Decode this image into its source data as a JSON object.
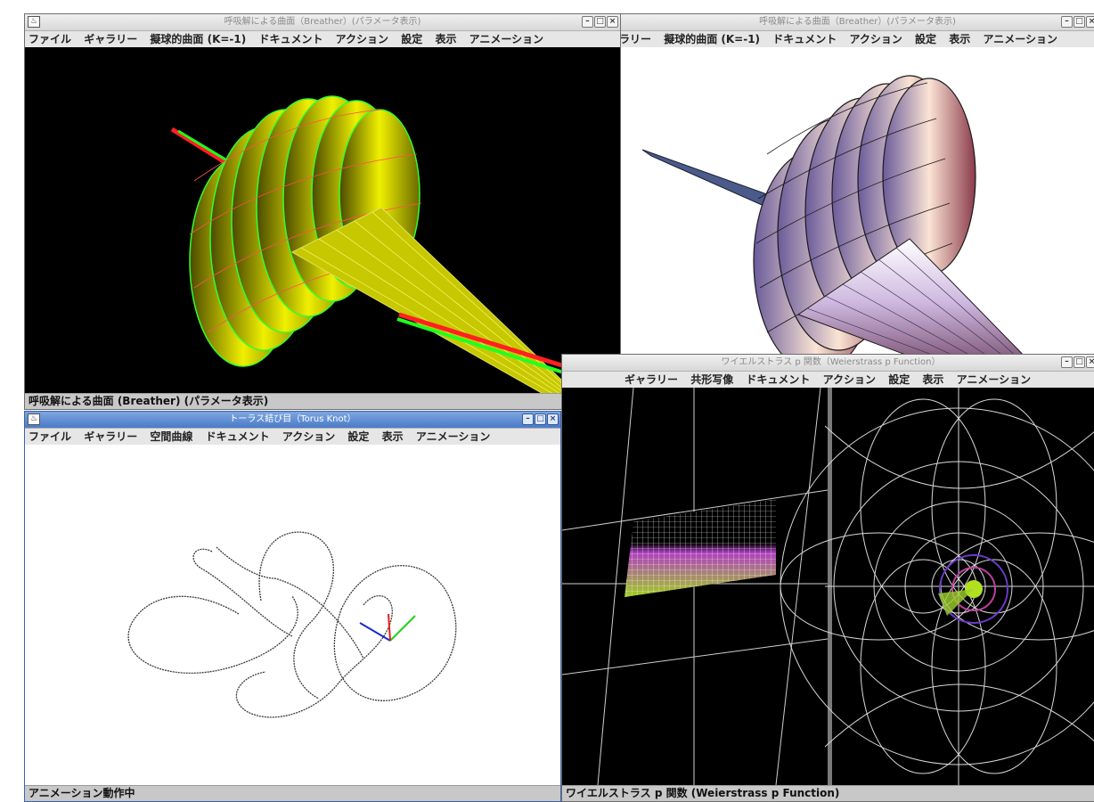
{
  "breather_right": {
    "title": "呼吸解による曲面（Breather）(パラメータ表示)",
    "menu": [
      "ラリー",
      "擬球的曲面 (K=-1)",
      "ドキュメント",
      "アクション",
      "設定",
      "表示",
      "アニメーション"
    ]
  },
  "breather_left": {
    "title": "呼吸解による曲面（Breather）(パラメータ表示)",
    "menu": [
      "ファイル",
      "ギャラリー",
      "擬球的曲面 (K=-1)",
      "ドキュメント",
      "アクション",
      "設定",
      "表示",
      "アニメーション"
    ],
    "status": "呼吸解による曲面 (Breather) (パラメータ表示)"
  },
  "weierstrass": {
    "title": "ワイエルストラス p 関数（Weierstrass p Function）",
    "menu": [
      "ギャラリー",
      "共形写像",
      "ドキュメント",
      "アクション",
      "設定",
      "表示",
      "アニメーション"
    ],
    "status": "ワイエルストラス p 関数 (Weierstrass p Function)"
  },
  "torus_knot": {
    "title": "トーラス結び目（Torus Knot）",
    "menu": [
      "ファイル",
      "ギャラリー",
      "空間曲線",
      "ドキュメント",
      "アクション",
      "設定",
      "表示",
      "アニメーション"
    ],
    "status": "アニメーション動作中"
  },
  "icons": {
    "app": "java-cup-icon",
    "minimize": "minimize-icon",
    "maximize": "maximize-icon",
    "close": "close-icon"
  }
}
